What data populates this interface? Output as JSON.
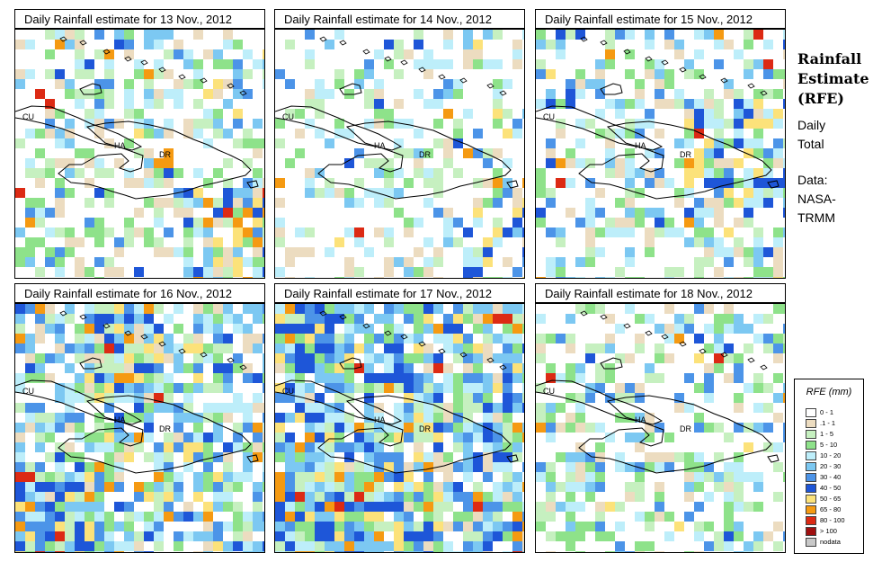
{
  "panels": [
    {
      "title": "Daily Rainfall estimate for  13 Nov., 2012",
      "seed": 13,
      "rain": {
        "light": 0.38,
        "med": 0.12,
        "heavy": 0.04
      }
    },
    {
      "title": "Daily Rainfall estimate for  14 Nov., 2012",
      "seed": 14,
      "rain": {
        "light": 0.28,
        "med": 0.08,
        "heavy": 0.02
      }
    },
    {
      "title": "Daily Rainfall estimate for  15 Nov., 2012",
      "seed": 15,
      "rain": {
        "light": 0.4,
        "med": 0.14,
        "heavy": 0.03
      }
    },
    {
      "title": "Daily Rainfall estimate for  16 Nov., 2012",
      "seed": 16,
      "rain": {
        "light": 0.62,
        "med": 0.34,
        "heavy": 0.1
      }
    },
    {
      "title": "Daily Rainfall estimate for  17 Nov., 2012",
      "seed": 17,
      "rain": {
        "light": 0.66,
        "med": 0.36,
        "heavy": 0.08
      }
    },
    {
      "title": "Daily Rainfall estimate for  18 Nov., 2012",
      "seed": 18,
      "rain": {
        "light": 0.4,
        "med": 0.12,
        "heavy": 0.02
      }
    }
  ],
  "country_labels": {
    "cu": "CU",
    "ha": "HA",
    "dr": "DR"
  },
  "side_panel": {
    "title_lines": [
      "Rainfall",
      "Estimate",
      "(RFE)"
    ],
    "subtitle_lines": [
      "Daily",
      "Total"
    ],
    "source_lines": [
      "Data:",
      "NASA-",
      "TRMM"
    ]
  },
  "legend": {
    "title": "RFE (mm)",
    "items": [
      {
        "label": "0 - 1",
        "color": "#ffffff"
      },
      {
        "label": ".1 - 1",
        "color": "#ecdcc0"
      },
      {
        "label": "1 - 5",
        "color": "#c6f0c0"
      },
      {
        "label": "5 - 10",
        "color": "#8ee28a"
      },
      {
        "label": "10 - 20",
        "color": "#bdeefa"
      },
      {
        "label": "20 - 30",
        "color": "#7cc8f2"
      },
      {
        "label": "30 - 40",
        "color": "#4c94e8"
      },
      {
        "label": "40 - 50",
        "color": "#1e56d8"
      },
      {
        "label": "50 - 65",
        "color": "#fce27a"
      },
      {
        "label": "65 - 80",
        "color": "#f59a12"
      },
      {
        "label": "80 - 100",
        "color": "#dc2a14"
      },
      {
        "label": "> 100",
        "color": "#a01010"
      },
      {
        "label": "nodata",
        "color": "#c8c8c8"
      }
    ]
  }
}
